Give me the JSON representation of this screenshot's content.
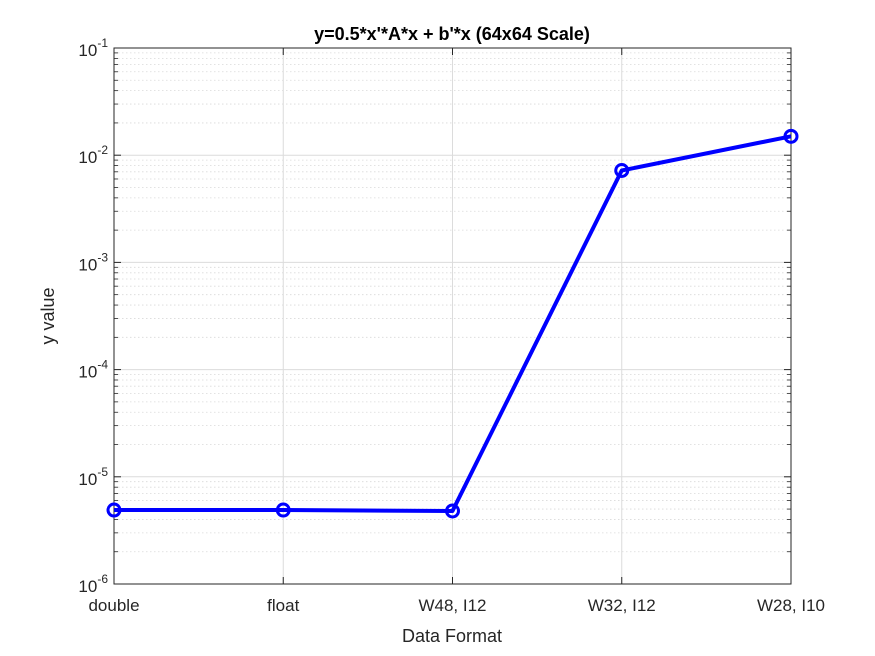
{
  "chart_data": {
    "type": "line",
    "title": "y=0.5*x'*A*x + b'*x (64x64 Scale)",
    "xlabel": "Data Format",
    "ylabel": "y value",
    "categories": [
      "double",
      "float",
      "W48, I12",
      "W32, I12",
      "W28, I10"
    ],
    "y_scale": "log",
    "ylim": [
      1e-06,
      0.1
    ],
    "y_ticks": [
      {
        "base": "10",
        "exp": "-6"
      },
      {
        "base": "10",
        "exp": "-5"
      },
      {
        "base": "10",
        "exp": "-4"
      },
      {
        "base": "10",
        "exp": "-3"
      },
      {
        "base": "10",
        "exp": "-2"
      },
      {
        "base": "10",
        "exp": "-1"
      }
    ],
    "grid": true,
    "minor_grid": true,
    "series": [
      {
        "values": [
          4.9e-06,
          4.9e-06,
          4.8e-06,
          0.0072,
          0.015
        ],
        "color": "#0000ff",
        "marker": "circle"
      }
    ]
  }
}
